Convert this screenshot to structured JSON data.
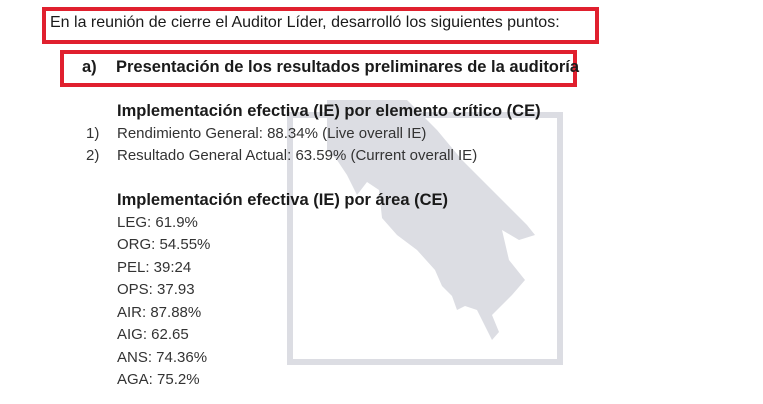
{
  "intro": "En la reunión de cierre el Auditor Líder, desarrolló los siguientes puntos:",
  "section": {
    "label": "a)",
    "title": "Presentación de los resultados preliminares de la auditoría"
  },
  "ce_heading": "Implementación efectiva (IE) por elemento crítico (CE)",
  "ce_items": [
    {
      "num": "1)",
      "text": "Rendimiento General: 88.34% (Live overall IE)"
    },
    {
      "num": "2)",
      "text": "Resultado General Actual: 63.59% (Current overall IE)"
    }
  ],
  "area_heading": "Implementación efectiva (IE) por área (CE)",
  "area_items": [
    "LEG: 61.9%",
    "ORG: 54.55%",
    "PEL: 39:24",
    "OPS: 37.93",
    "AIR: 87.88%",
    "AIG: 62.65",
    "ANS: 74.36%",
    "AGA: 75.2%"
  ],
  "colors": {
    "highlight": "#e0202e",
    "watermark": "#dcdde3"
  }
}
